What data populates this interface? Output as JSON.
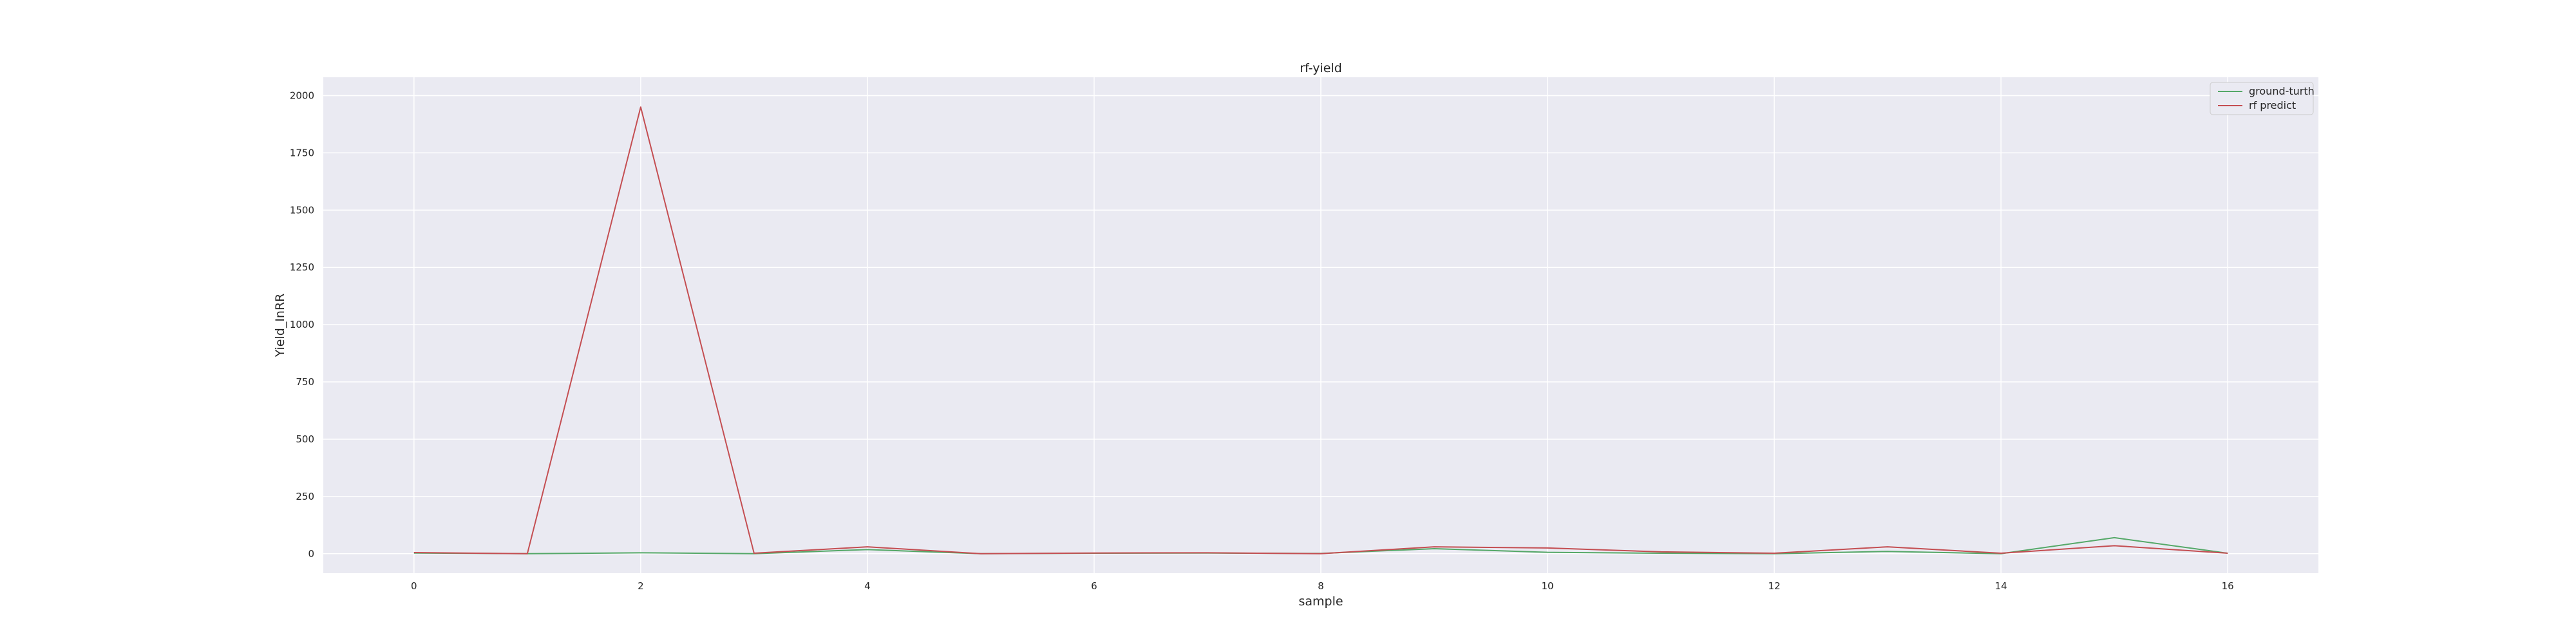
{
  "chart_data": {
    "type": "line",
    "title": "rf-yield",
    "xlabel": "sample",
    "ylabel": "Yield_InRR",
    "x": [
      0,
      1,
      2,
      3,
      4,
      5,
      6,
      7,
      8,
      9,
      10,
      11,
      12,
      13,
      14,
      15,
      16
    ],
    "xlim": [
      -0.8,
      16.8
    ],
    "ylim": [
      -85,
      2080
    ],
    "xticks": [
      0,
      2,
      4,
      6,
      8,
      10,
      12,
      14,
      16
    ],
    "yticks": [
      0,
      250,
      500,
      750,
      1000,
      1250,
      1500,
      1750,
      2000
    ],
    "grid": true,
    "legend_position": "top-right",
    "background_color": "#eaeaf2",
    "series": [
      {
        "name": "ground-turth",
        "color": "#55a868",
        "values": [
          3,
          0,
          4,
          0,
          18,
          0,
          2,
          3,
          1,
          22,
          6,
          2,
          0,
          10,
          0,
          70,
          2
        ]
      },
      {
        "name": "rf predict",
        "color": "#c44e52",
        "values": [
          5,
          0,
          1950,
          2,
          30,
          0,
          3,
          4,
          0,
          30,
          25,
          8,
          2,
          30,
          2,
          35,
          2
        ]
      }
    ]
  }
}
